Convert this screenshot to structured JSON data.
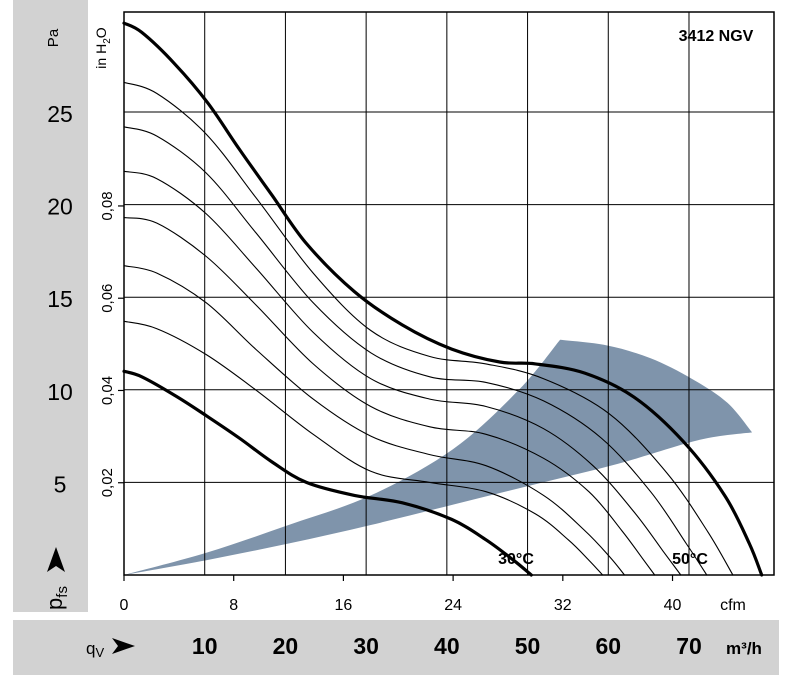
{
  "chart_data": {
    "type": "line",
    "model_label": "3412  NGV",
    "pressure_axis": {
      "unit": "Pa",
      "symbol_main": "p",
      "symbol_sub": "fs",
      "range": [
        0,
        30.4
      ],
      "ticks": [
        5,
        10,
        15,
        20,
        25
      ]
    },
    "inh2o_axis": {
      "unit_prefix": "in H",
      "unit_sub": "2",
      "unit_suffix": "O",
      "ticks": [
        {
          "label": "0,02",
          "value": 0.02
        },
        {
          "label": "0,04",
          "value": 0.04
        },
        {
          "label": "0,06",
          "value": 0.06
        },
        {
          "label": "0,08",
          "value": 0.08
        }
      ]
    },
    "cfm_axis": {
      "unit": "cfm",
      "range": [
        0,
        47.4
      ],
      "ticks": [
        {
          "label": "0",
          "value": 0
        },
        {
          "label": "8",
          "value": 8
        },
        {
          "label": "16",
          "value": 16
        },
        {
          "label": "24",
          "value": 24
        },
        {
          "label": "32",
          "value": 32
        },
        {
          "label": "40",
          "value": 40
        }
      ]
    },
    "m3h_axis": {
      "symbol_main": "q",
      "symbol_sub": "V",
      "unit": "m³/h",
      "ticks": [
        10,
        20,
        30,
        40,
        50,
        60,
        70
      ]
    },
    "labels": {
      "low": "30°C",
      "high": "50°C"
    },
    "series": [
      {
        "name": "30°C",
        "x": [
          0,
          1.3,
          3.7,
          6.0,
          8.4,
          10.8,
          13.3,
          16.8,
          20.3,
          23.9,
          26.4,
          28.4,
          29.7
        ],
        "y": [
          11.0,
          10.7,
          9.7,
          8.6,
          7.4,
          6.1,
          5.0,
          4.3,
          3.9,
          3.0,
          1.9,
          0.8,
          0
        ]
      },
      {
        "name": "intermediate 1",
        "x": [
          0,
          2.4,
          6.0,
          9.6,
          13.8,
          18.0,
          22.3,
          26.4,
          30.0,
          32.4,
          33.9,
          34.9
        ],
        "y": [
          13.7,
          13.3,
          11.9,
          10.0,
          7.6,
          5.6,
          5.0,
          4.5,
          3.3,
          1.9,
          0.8,
          0
        ]
      },
      {
        "name": "intermediate 2",
        "x": [
          0,
          2.4,
          6.0,
          9.6,
          13.8,
          18.0,
          22.3,
          26.4,
          30.6,
          33.6,
          35.4,
          36.5
        ],
        "y": [
          16.7,
          16.3,
          14.7,
          12.2,
          9.5,
          7.5,
          6.5,
          5.9,
          4.3,
          2.4,
          1.0,
          0
        ]
      },
      {
        "name": "intermediate 3",
        "x": [
          0,
          2.4,
          6.0,
          9.6,
          13.8,
          18.0,
          22.3,
          26.4,
          30.6,
          33.9,
          36.3,
          37.8,
          38.7
        ],
        "y": [
          19.3,
          19.0,
          17.2,
          14.6,
          11.4,
          9.1,
          8.0,
          7.6,
          6.3,
          4.5,
          2.4,
          0.9,
          0
        ]
      },
      {
        "name": "intermediate 4",
        "x": [
          0,
          2.4,
          6.0,
          9.6,
          13.8,
          18.0,
          22.3,
          26.4,
          30.6,
          34.2,
          37.2,
          39.3,
          40.6
        ],
        "y": [
          21.8,
          21.4,
          19.5,
          16.6,
          13.1,
          10.6,
          9.5,
          9.1,
          7.9,
          5.9,
          3.4,
          1.3,
          0
        ]
      },
      {
        "name": "intermediate 5",
        "x": [
          0,
          2.4,
          6.0,
          9.6,
          13.8,
          18.0,
          22.3,
          26.4,
          30.6,
          34.8,
          38.4,
          41.0,
          42.5
        ],
        "y": [
          24.2,
          23.7,
          21.7,
          18.5,
          14.7,
          12.0,
          10.7,
          10.4,
          9.4,
          7.4,
          4.5,
          1.7,
          0
        ]
      },
      {
        "name": "intermediate 6",
        "x": [
          0,
          2.4,
          6.0,
          9.6,
          13.8,
          18.0,
          22.3,
          26.4,
          30.6,
          35.4,
          39.6,
          42.6,
          44.4
        ],
        "y": [
          26.6,
          26.0,
          23.8,
          20.4,
          16.3,
          13.2,
          11.8,
          11.4,
          10.6,
          8.7,
          5.5,
          2.3,
          0
        ]
      },
      {
        "name": "50°C",
        "x": [
          0,
          1.3,
          3.7,
          6.1,
          8.4,
          10.8,
          13.3,
          16.8,
          20.3,
          23.9,
          27.4,
          30.0,
          33.6,
          37.2,
          40.8,
          43.8,
          45.6,
          46.5
        ],
        "y": [
          29.8,
          29.3,
          27.6,
          25.5,
          23.0,
          20.5,
          17.9,
          15.3,
          13.5,
          12.2,
          11.5,
          11.4,
          10.9,
          9.6,
          7.2,
          4.3,
          1.7,
          0
        ]
      }
    ],
    "operating_zone": {
      "upper_boundary": {
        "x": [
          0,
          6.0,
          12.0,
          18.0,
          24.0,
          28.8,
          31.8
        ],
        "y": [
          0,
          1.2,
          2.7,
          4.3,
          6.8,
          10.0,
          12.7
        ]
      },
      "lower_boundary": {
        "x": [
          0,
          6.0,
          12.0,
          18.0,
          24.0,
          30.0,
          36.0,
          42.0,
          45.8
        ],
        "y": [
          0,
          0.8,
          1.7,
          2.7,
          3.8,
          4.9,
          6.0,
          7.3,
          7.7
        ]
      },
      "outer_arc": {
        "x": [
          31.8,
          35.2,
          38.4,
          41.4,
          44.0,
          45.8
        ],
        "y": [
          12.7,
          12.4,
          11.7,
          10.6,
          9.3,
          7.7
        ]
      }
    }
  }
}
